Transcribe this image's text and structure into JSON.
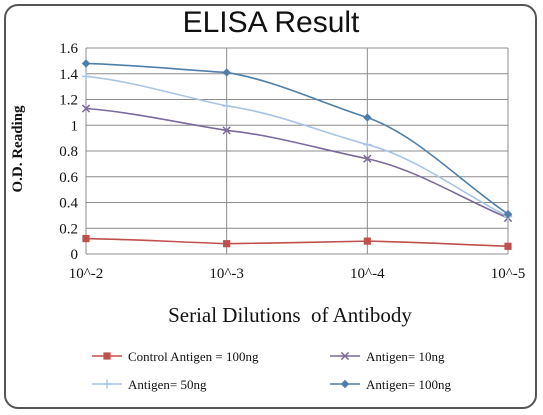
{
  "chart_data": {
    "type": "line",
    "title": "ELISA Result",
    "xlabel": "Serial Dilutions  of Antibody",
    "ylabel": "O.D. Reading",
    "categories": [
      "10^-2",
      "10^-3",
      "10^-4",
      "10^-5"
    ],
    "ylim": [
      0,
      1.6
    ],
    "yticks": [
      "0",
      "0.2",
      "0.4",
      "0.6",
      "0.8",
      "1",
      "1.2",
      "1.4",
      "1.6"
    ],
    "grid": true,
    "legend_position": "bottom",
    "series": [
      {
        "name": "Control Antigen = 100ng",
        "values": [
          0.12,
          0.08,
          0.1,
          0.06
        ],
        "color": "#c0504d",
        "marker": "square"
      },
      {
        "name": "Antigen= 10ng",
        "values": [
          1.13,
          0.96,
          0.74,
          0.28
        ],
        "color": "#7b6a9b",
        "marker": "x"
      },
      {
        "name": "Antigen= 50ng",
        "values": [
          1.38,
          1.15,
          0.85,
          0.29
        ],
        "color": "#a9c4e4",
        "marker": "plus"
      },
      {
        "name": "Antigen= 100ng",
        "values": [
          1.48,
          1.41,
          1.06,
          0.31
        ],
        "color": "#4f7fa8",
        "marker": "diamond"
      }
    ]
  }
}
